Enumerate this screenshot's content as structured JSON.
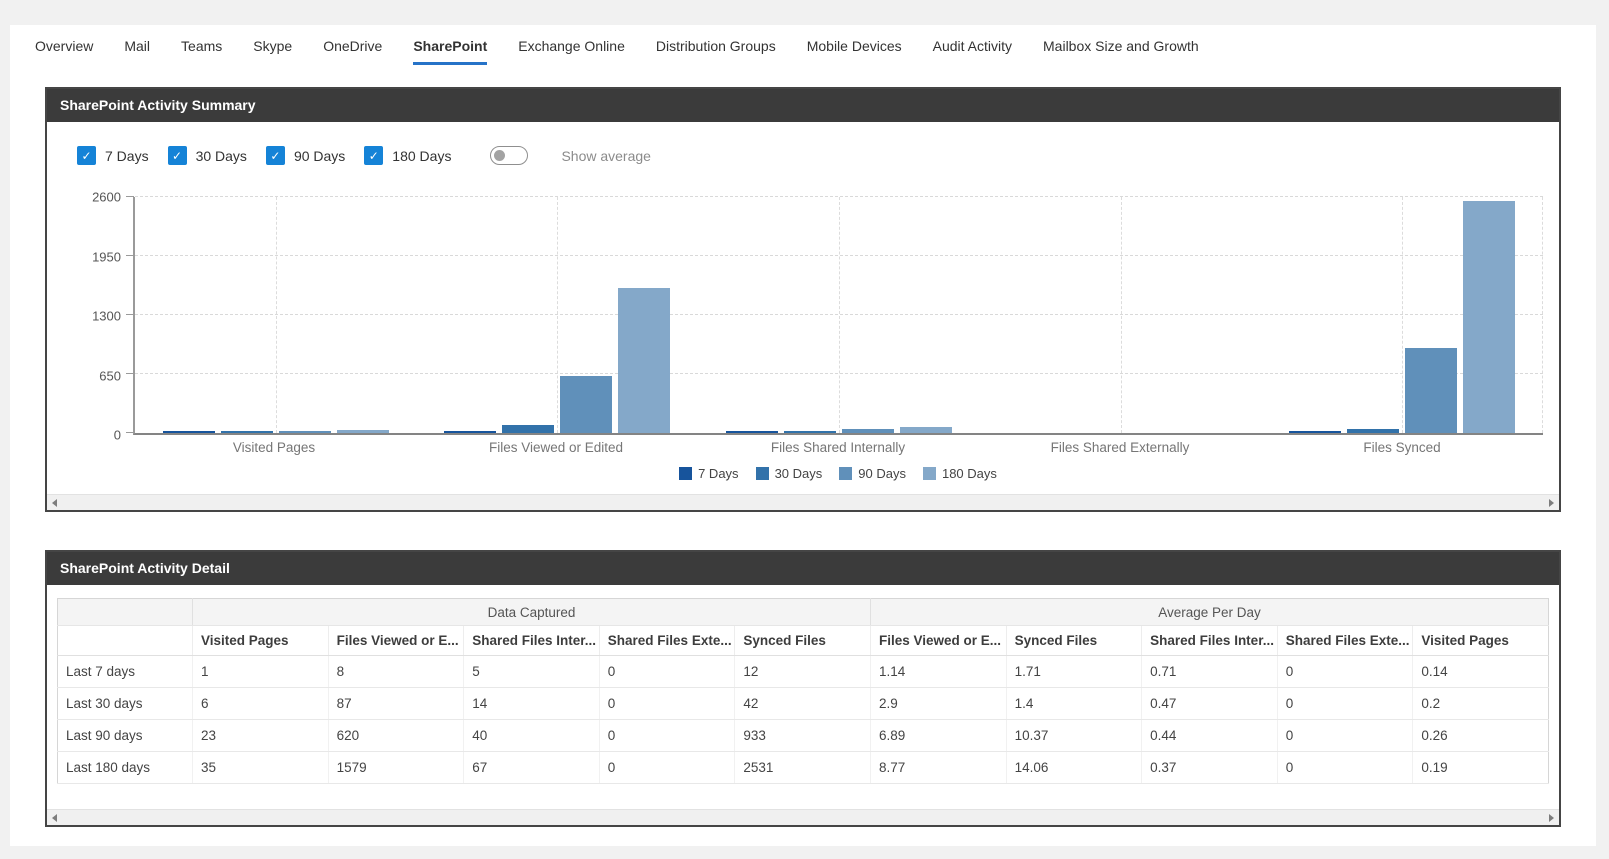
{
  "tabs": {
    "items": [
      {
        "label": "Overview",
        "selected": false
      },
      {
        "label": "Mail",
        "selected": false
      },
      {
        "label": "Teams",
        "selected": false
      },
      {
        "label": "Skype",
        "selected": false
      },
      {
        "label": "OneDrive",
        "selected": false
      },
      {
        "label": "SharePoint",
        "selected": true
      },
      {
        "label": "Exchange Online",
        "selected": false
      },
      {
        "label": "Distribution Groups",
        "selected": false
      },
      {
        "label": "Mobile Devices",
        "selected": false
      },
      {
        "label": "Audit Activity",
        "selected": false
      },
      {
        "label": "Mailbox Size and Growth",
        "selected": false
      }
    ]
  },
  "colors": {
    "accent_checkbox": "#1583d7",
    "tab_underline": "#2673c8",
    "panel_header_bg": "#3b3b3b"
  },
  "icons": {
    "checkbox_check": "✓"
  },
  "summary_panel": {
    "title": "SharePoint Activity Summary",
    "filters": [
      {
        "label": "7 Days",
        "checked": true
      },
      {
        "label": "30 Days",
        "checked": true
      },
      {
        "label": "90 Days",
        "checked": true
      },
      {
        "label": "180 Days",
        "checked": true
      }
    ],
    "toggle_label": "Show average",
    "toggle_on": false
  },
  "chart_data": {
    "type": "bar",
    "title": "SharePoint Activity Summary",
    "categories": [
      "Visited Pages",
      "Files Viewed or Edited",
      "Files Shared Internally",
      "Files Shared Externally",
      "Files Synced"
    ],
    "series": [
      {
        "name": "7 Days",
        "color": "#17549c",
        "values": [
          1,
          8,
          5,
          0,
          12
        ]
      },
      {
        "name": "30 Days",
        "color": "#3272aa",
        "values": [
          6,
          87,
          14,
          0,
          42
        ]
      },
      {
        "name": "90 Days",
        "color": "#6090ba",
        "values": [
          23,
          620,
          40,
          0,
          933
        ]
      },
      {
        "name": "180 Days",
        "color": "#84a8c9",
        "values": [
          35,
          1579,
          67,
          0,
          2531
        ]
      }
    ],
    "ylim": [
      0,
      2600
    ],
    "yticks": [
      0,
      650,
      1300,
      1950,
      2600
    ],
    "grid": true,
    "legend_position": "bottom"
  },
  "detail_panel": {
    "title": "SharePoint Activity Detail",
    "table": {
      "group_headers": [
        "Data Captured",
        "Average Per Day"
      ],
      "columns": [
        "Visited Pages",
        "Files Viewed or E...",
        "Shared Files Inter...",
        "Shared Files Exte...",
        "Synced Files",
        "Files Viewed or E...",
        "Synced Files",
        "Shared Files Inter...",
        "Shared Files Exte...",
        "Visited Pages"
      ],
      "rows": [
        {
          "label": "Last 7 days",
          "values": [
            "1",
            "8",
            "5",
            "0",
            "12",
            "1.14",
            "1.71",
            "0.71",
            "0",
            "0.14"
          ]
        },
        {
          "label": "Last 30 days",
          "values": [
            "6",
            "87",
            "14",
            "0",
            "42",
            "2.9",
            "1.4",
            "0.47",
            "0",
            "0.2"
          ]
        },
        {
          "label": "Last 90 days",
          "values": [
            "23",
            "620",
            "40",
            "0",
            "933",
            "6.89",
            "10.37",
            "0.44",
            "0",
            "0.26"
          ]
        },
        {
          "label": "Last 180 days",
          "values": [
            "35",
            "1579",
            "67",
            "0",
            "2531",
            "8.77",
            "14.06",
            "0.37",
            "0",
            "0.19"
          ]
        }
      ]
    }
  }
}
